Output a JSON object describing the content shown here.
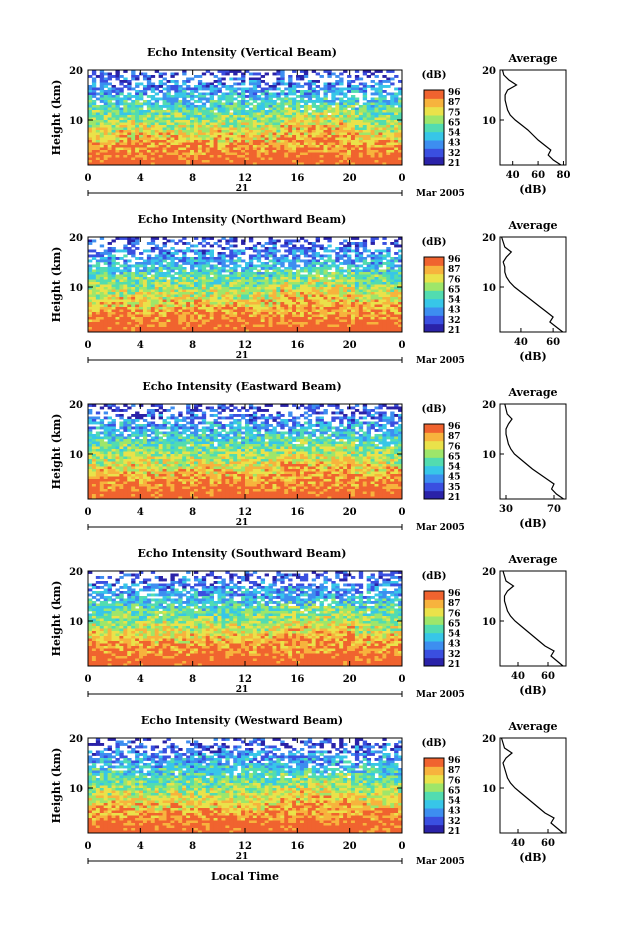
{
  "x_axis_label": "Local Time",
  "date_label": "Mar 2005",
  "day_label": "21",
  "colorbar_unit": "(dB)",
  "average_title": "Average",
  "average_xlabel": "(dB)",
  "y_label": "Height (km)",
  "chart_data": [
    {
      "type": "heatmap",
      "title": "Echo Intensity (Vertical Beam)",
      "xlabel": "",
      "ylabel": "Height (km)",
      "x_ticks": [
        "0",
        "4",
        "8",
        "12",
        "16",
        "20",
        "0"
      ],
      "y_ticks": [
        "20",
        "10"
      ],
      "xlim": [
        0,
        24
      ],
      "ylim": [
        1,
        20
      ],
      "colorbar_ticks": [
        "96",
        "87",
        "75",
        "65",
        "54",
        "43",
        "32",
        "21"
      ],
      "colorbar_range": [
        21,
        96
      ],
      "profile": {
        "title": "Average",
        "xlabel": "(dB)",
        "x_ticks": [
          "40",
          "60",
          "80"
        ],
        "xlim": [
          30,
          82
        ],
        "height": [
          1,
          2,
          3,
          4,
          5,
          6,
          7,
          8,
          9,
          10,
          11,
          12,
          13,
          14,
          15,
          16,
          17,
          18,
          19,
          20
        ],
        "db": [
          78,
          72,
          68,
          70,
          65,
          60,
          56,
          52,
          47,
          42,
          38,
          36,
          35,
          34,
          34,
          36,
          43,
          37,
          33,
          32
        ]
      }
    },
    {
      "type": "heatmap",
      "title": "Echo Intensity (Northward Beam)",
      "xlabel": "",
      "ylabel": "Height (km)",
      "x_ticks": [
        "0",
        "4",
        "8",
        "12",
        "16",
        "20",
        "0"
      ],
      "y_ticks": [
        "20",
        "10"
      ],
      "xlim": [
        0,
        24
      ],
      "ylim": [
        1,
        20
      ],
      "colorbar_ticks": [
        "96",
        "87",
        "76",
        "65",
        "54",
        "43",
        "32",
        "21"
      ],
      "colorbar_range": [
        21,
        96
      ],
      "profile": {
        "title": "Average",
        "xlabel": "(dB)",
        "x_ticks": [
          "40",
          "60"
        ],
        "xlim": [
          27,
          68
        ],
        "height": [
          1,
          2,
          3,
          4,
          5,
          6,
          7,
          8,
          9,
          10,
          11,
          12,
          13,
          14,
          15,
          16,
          17,
          18,
          19,
          20
        ],
        "db": [
          66,
          62,
          58,
          60,
          56,
          52,
          48,
          44,
          40,
          36,
          33,
          31,
          30,
          30,
          29,
          31,
          34,
          30,
          29,
          28
        ]
      }
    },
    {
      "type": "heatmap",
      "title": "Echo Intensity (Eastward Beam)",
      "xlabel": "",
      "ylabel": "Height (km)",
      "x_ticks": [
        "0",
        "4",
        "8",
        "12",
        "16",
        "20",
        "0"
      ],
      "y_ticks": [
        "20",
        "10"
      ],
      "xlim": [
        0,
        24
      ],
      "ylim": [
        1,
        20
      ],
      "colorbar_ticks": [
        "96",
        "87",
        "76",
        "65",
        "54",
        "45",
        "35",
        "21"
      ],
      "colorbar_range": [
        21,
        96
      ],
      "profile": {
        "title": "Average",
        "xlabel": "(dB)",
        "x_ticks": [
          "30",
          "70"
        ],
        "xlim": [
          25,
          80
        ],
        "height": [
          1,
          2,
          3,
          4,
          5,
          6,
          7,
          8,
          9,
          10,
          11,
          12,
          13,
          14,
          15,
          16,
          17,
          18,
          19,
          20
        ],
        "db": [
          78,
          72,
          68,
          70,
          64,
          58,
          52,
          47,
          42,
          37,
          34,
          32,
          31,
          30,
          30,
          32,
          35,
          31,
          30,
          29
        ]
      }
    },
    {
      "type": "heatmap",
      "title": "Echo Intensity (Southward Beam)",
      "xlabel": "",
      "ylabel": "Height (km)",
      "x_ticks": [
        "0",
        "4",
        "8",
        "12",
        "16",
        "20",
        "0"
      ],
      "y_ticks": [
        "20",
        "10"
      ],
      "xlim": [
        0,
        24
      ],
      "ylim": [
        1,
        20
      ],
      "colorbar_ticks": [
        "96",
        "87",
        "76",
        "65",
        "54",
        "43",
        "32",
        "21"
      ],
      "colorbar_range": [
        21,
        96
      ],
      "profile": {
        "title": "Average",
        "xlabel": "(dB)",
        "x_ticks": [
          "40",
          "60"
        ],
        "xlim": [
          28,
          72
        ],
        "height": [
          1,
          2,
          3,
          4,
          5,
          6,
          7,
          8,
          9,
          10,
          11,
          12,
          13,
          14,
          15,
          16,
          17,
          18,
          19,
          20
        ],
        "db": [
          70,
          66,
          62,
          64,
          58,
          54,
          50,
          46,
          42,
          38,
          35,
          33,
          32,
          31,
          31,
          33,
          37,
          32,
          31,
          30
        ]
      }
    },
    {
      "type": "heatmap",
      "title": "Echo Intensity (Westward Beam)",
      "xlabel": "",
      "ylabel": "Height (km)",
      "x_ticks": [
        "0",
        "4",
        "8",
        "12",
        "16",
        "20",
        "0"
      ],
      "y_ticks": [
        "20",
        "10"
      ],
      "xlim": [
        0,
        24
      ],
      "ylim": [
        1,
        20
      ],
      "colorbar_ticks": [
        "96",
        "87",
        "76",
        "65",
        "54",
        "43",
        "32",
        "21"
      ],
      "colorbar_range": [
        21,
        96
      ],
      "profile": {
        "title": "Average",
        "xlabel": "(dB)",
        "x_ticks": [
          "40",
          "60"
        ],
        "xlim": [
          28,
          72
        ],
        "height": [
          1,
          2,
          3,
          4,
          5,
          6,
          7,
          8,
          9,
          10,
          11,
          12,
          13,
          14,
          15,
          16,
          17,
          18,
          19,
          20
        ],
        "db": [
          70,
          66,
          62,
          64,
          58,
          54,
          50,
          46,
          42,
          38,
          35,
          33,
          32,
          31,
          30,
          32,
          36,
          31,
          30,
          29
        ]
      }
    }
  ],
  "colors": {
    "scale": [
      "#2a22a8",
      "#3a4fe0",
      "#3d8ef0",
      "#37c6e8",
      "#52dcb0",
      "#9ee66a",
      "#eae24a",
      "#f7b33d",
      "#f0632f"
    ]
  }
}
